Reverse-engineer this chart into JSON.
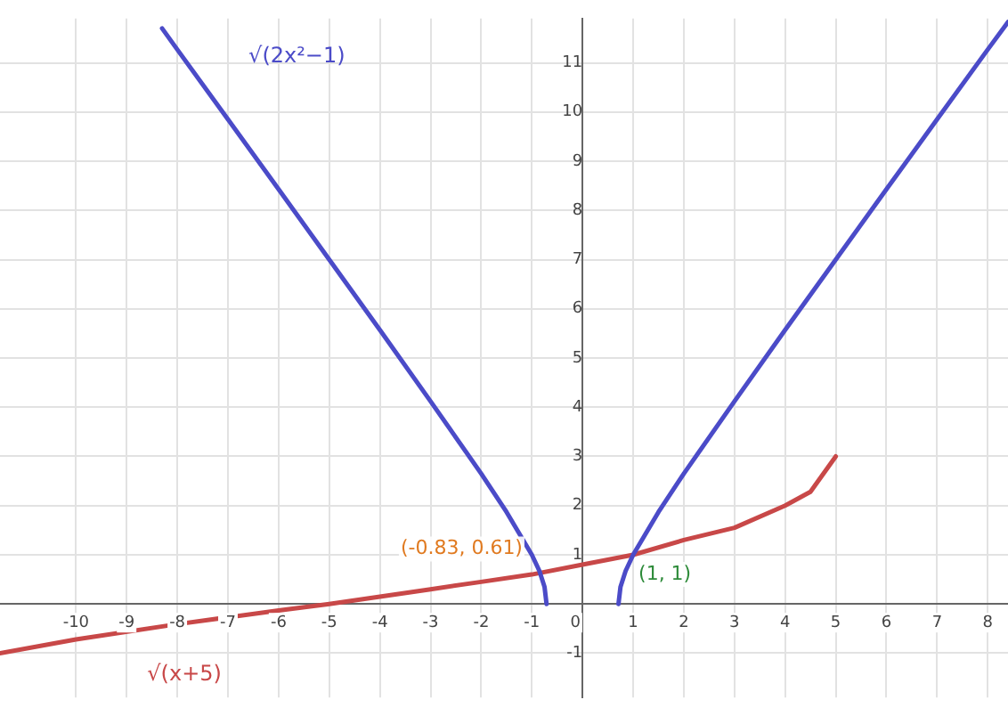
{
  "chart_data": {
    "type": "line",
    "legend": false,
    "grid": true,
    "marker": "none",
    "line_style": "solid",
    "xlim": [
      -11.5,
      8.4
    ],
    "ylim": [
      -1.9,
      11.9
    ],
    "xticks": [
      -10,
      -9,
      -8,
      -7,
      -6,
      -5,
      -4,
      -3,
      -2,
      -1,
      0,
      1,
      2,
      3,
      4,
      5,
      6,
      7,
      8
    ],
    "yticks": [
      -1,
      1,
      2,
      3,
      4,
      5,
      6,
      7,
      8,
      9,
      10,
      11
    ],
    "series": [
      {
        "name": "√(2x²−1)",
        "color": "#4b4bc8",
        "x": [
          -8.3,
          -8,
          -7,
          -6,
          -5,
          -4,
          -3,
          -2,
          -1.5,
          -1,
          -0.85,
          -0.75,
          -0.71,
          0,
          0.71,
          0.75,
          0.85,
          1,
          1.5,
          2,
          3,
          4,
          5,
          6,
          7,
          8,
          8.4
        ],
        "values": [
          11.7,
          11.27,
          9.85,
          8.43,
          7,
          5.57,
          4.12,
          2.65,
          1.87,
          1,
          0.67,
          0.35,
          0,
          null,
          0,
          0.35,
          0.67,
          1,
          1.87,
          2.65,
          4.12,
          5.57,
          7,
          8.43,
          9.85,
          11.27,
          11.83
        ]
      },
      {
        "name": "√(x+5)",
        "color": "#c84848",
        "x": [
          -11.5,
          -10,
          -8,
          -6,
          -5,
          -4,
          -3,
          -2,
          -1,
          0,
          1,
          2,
          3,
          4,
          4.5,
          5
        ],
        "values": [
          -1,
          -0.72,
          -0.41,
          -0.13,
          0,
          0.15,
          0.3,
          0.45,
          0.6,
          0.8,
          1,
          1.3,
          1.55,
          2,
          2.28,
          3
        ]
      }
    ],
    "annotations": [
      {
        "text": "(-0.83, 0.61)",
        "x": -0.83,
        "y": 0.61
      },
      {
        "text": "(1, 1)",
        "x": 1,
        "y": 1
      }
    ]
  }
}
